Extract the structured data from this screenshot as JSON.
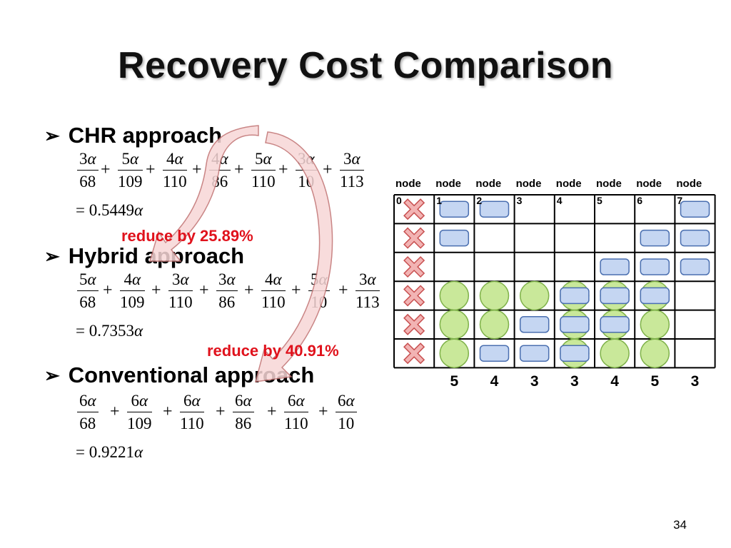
{
  "title": "Recovery Cost Comparison",
  "bullets": {
    "chr": "CHR approach",
    "hybrid": "Hybrid approach",
    "conventional": "Conventional approach"
  },
  "symbols": {
    "alpha": "α",
    "plus": "+",
    "equals": "="
  },
  "equations": {
    "chr": {
      "numerators": [
        "3",
        "5",
        "4",
        "4",
        "5",
        "3",
        "3"
      ],
      "denominators": [
        "68",
        "109",
        "110",
        "86",
        "110",
        "10",
        "113"
      ],
      "result": "0.5449"
    },
    "hybrid": {
      "numerators": [
        "5",
        "4",
        "3",
        "3",
        "4",
        "5",
        "3"
      ],
      "denominators": [
        "68",
        "109",
        "110",
        "86",
        "110",
        "10",
        "113"
      ],
      "result": "0.7353"
    },
    "conventional": {
      "numerators": [
        "6",
        "6",
        "6",
        "6",
        "6",
        "6"
      ],
      "denominators": [
        "68",
        "109",
        "110",
        "86",
        "110",
        "10"
      ],
      "result": "0.9221"
    }
  },
  "annotations": {
    "reduce1": "reduce by 25.89%",
    "reduce2": "reduce by 40.91%"
  },
  "grid": {
    "node_word": "node",
    "node_numbers": [
      "0",
      "1",
      "2",
      "3",
      "4",
      "5",
      "6",
      "7"
    ],
    "column_counts": [
      "5",
      "4",
      "3",
      "3",
      "4",
      "5",
      "3"
    ]
  },
  "slide_number": "34",
  "colors": {
    "accent_red": "#e0121c",
    "rect_fill": "#c5d6f2",
    "rect_stroke": "#4a6fb0",
    "circle_fill": "#c9e89a",
    "circle_stroke": "#7fb24a",
    "x_fill": "#f2b3b3",
    "x_stroke": "#c85050",
    "arrow_fill": "#f7d6d6",
    "arrow_stroke": "#c07070"
  }
}
